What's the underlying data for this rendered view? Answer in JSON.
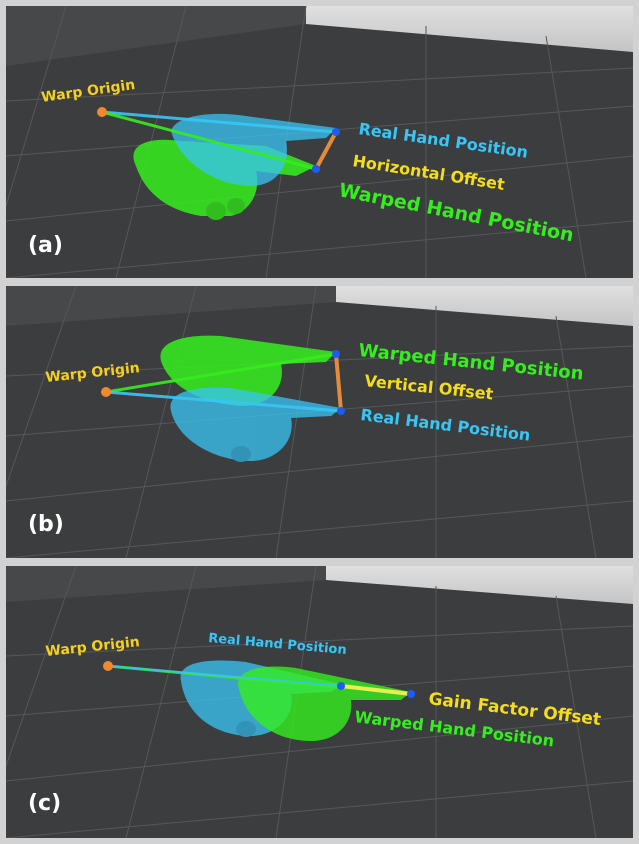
{
  "colors": {
    "real_hand": "#38c6f6",
    "warped_hand": "#35ee1e",
    "offset_text": "#f3dd1c",
    "warp_origin": "#f5d01e",
    "offset_line": "#e68a3c",
    "gain_line": "#e8f050",
    "floor": "#3c3d3f",
    "grid": "#565759",
    "sky": "#d6d6d6"
  },
  "icons": [
    "warp-origin-marker",
    "real-hand-marker",
    "warped-hand-marker"
  ],
  "panels": [
    {
      "tag": "(a)",
      "warp_origin": "Warp Origin",
      "real_hand": "Real Hand Position",
      "offset": "Horizontal Offset",
      "warped_hand": "Warped Hand Position"
    },
    {
      "tag": "(b)",
      "warp_origin": "Warp Origin",
      "warped_hand": "Warped Hand Position",
      "offset": "Vertical Offset",
      "real_hand": "Real Hand Position"
    },
    {
      "tag": "(c)",
      "warp_origin": "Warp Origin",
      "real_hand": "Real Hand Position",
      "offset": "Gain Factor Offset",
      "warped_hand": "Warped Hand Position"
    }
  ]
}
